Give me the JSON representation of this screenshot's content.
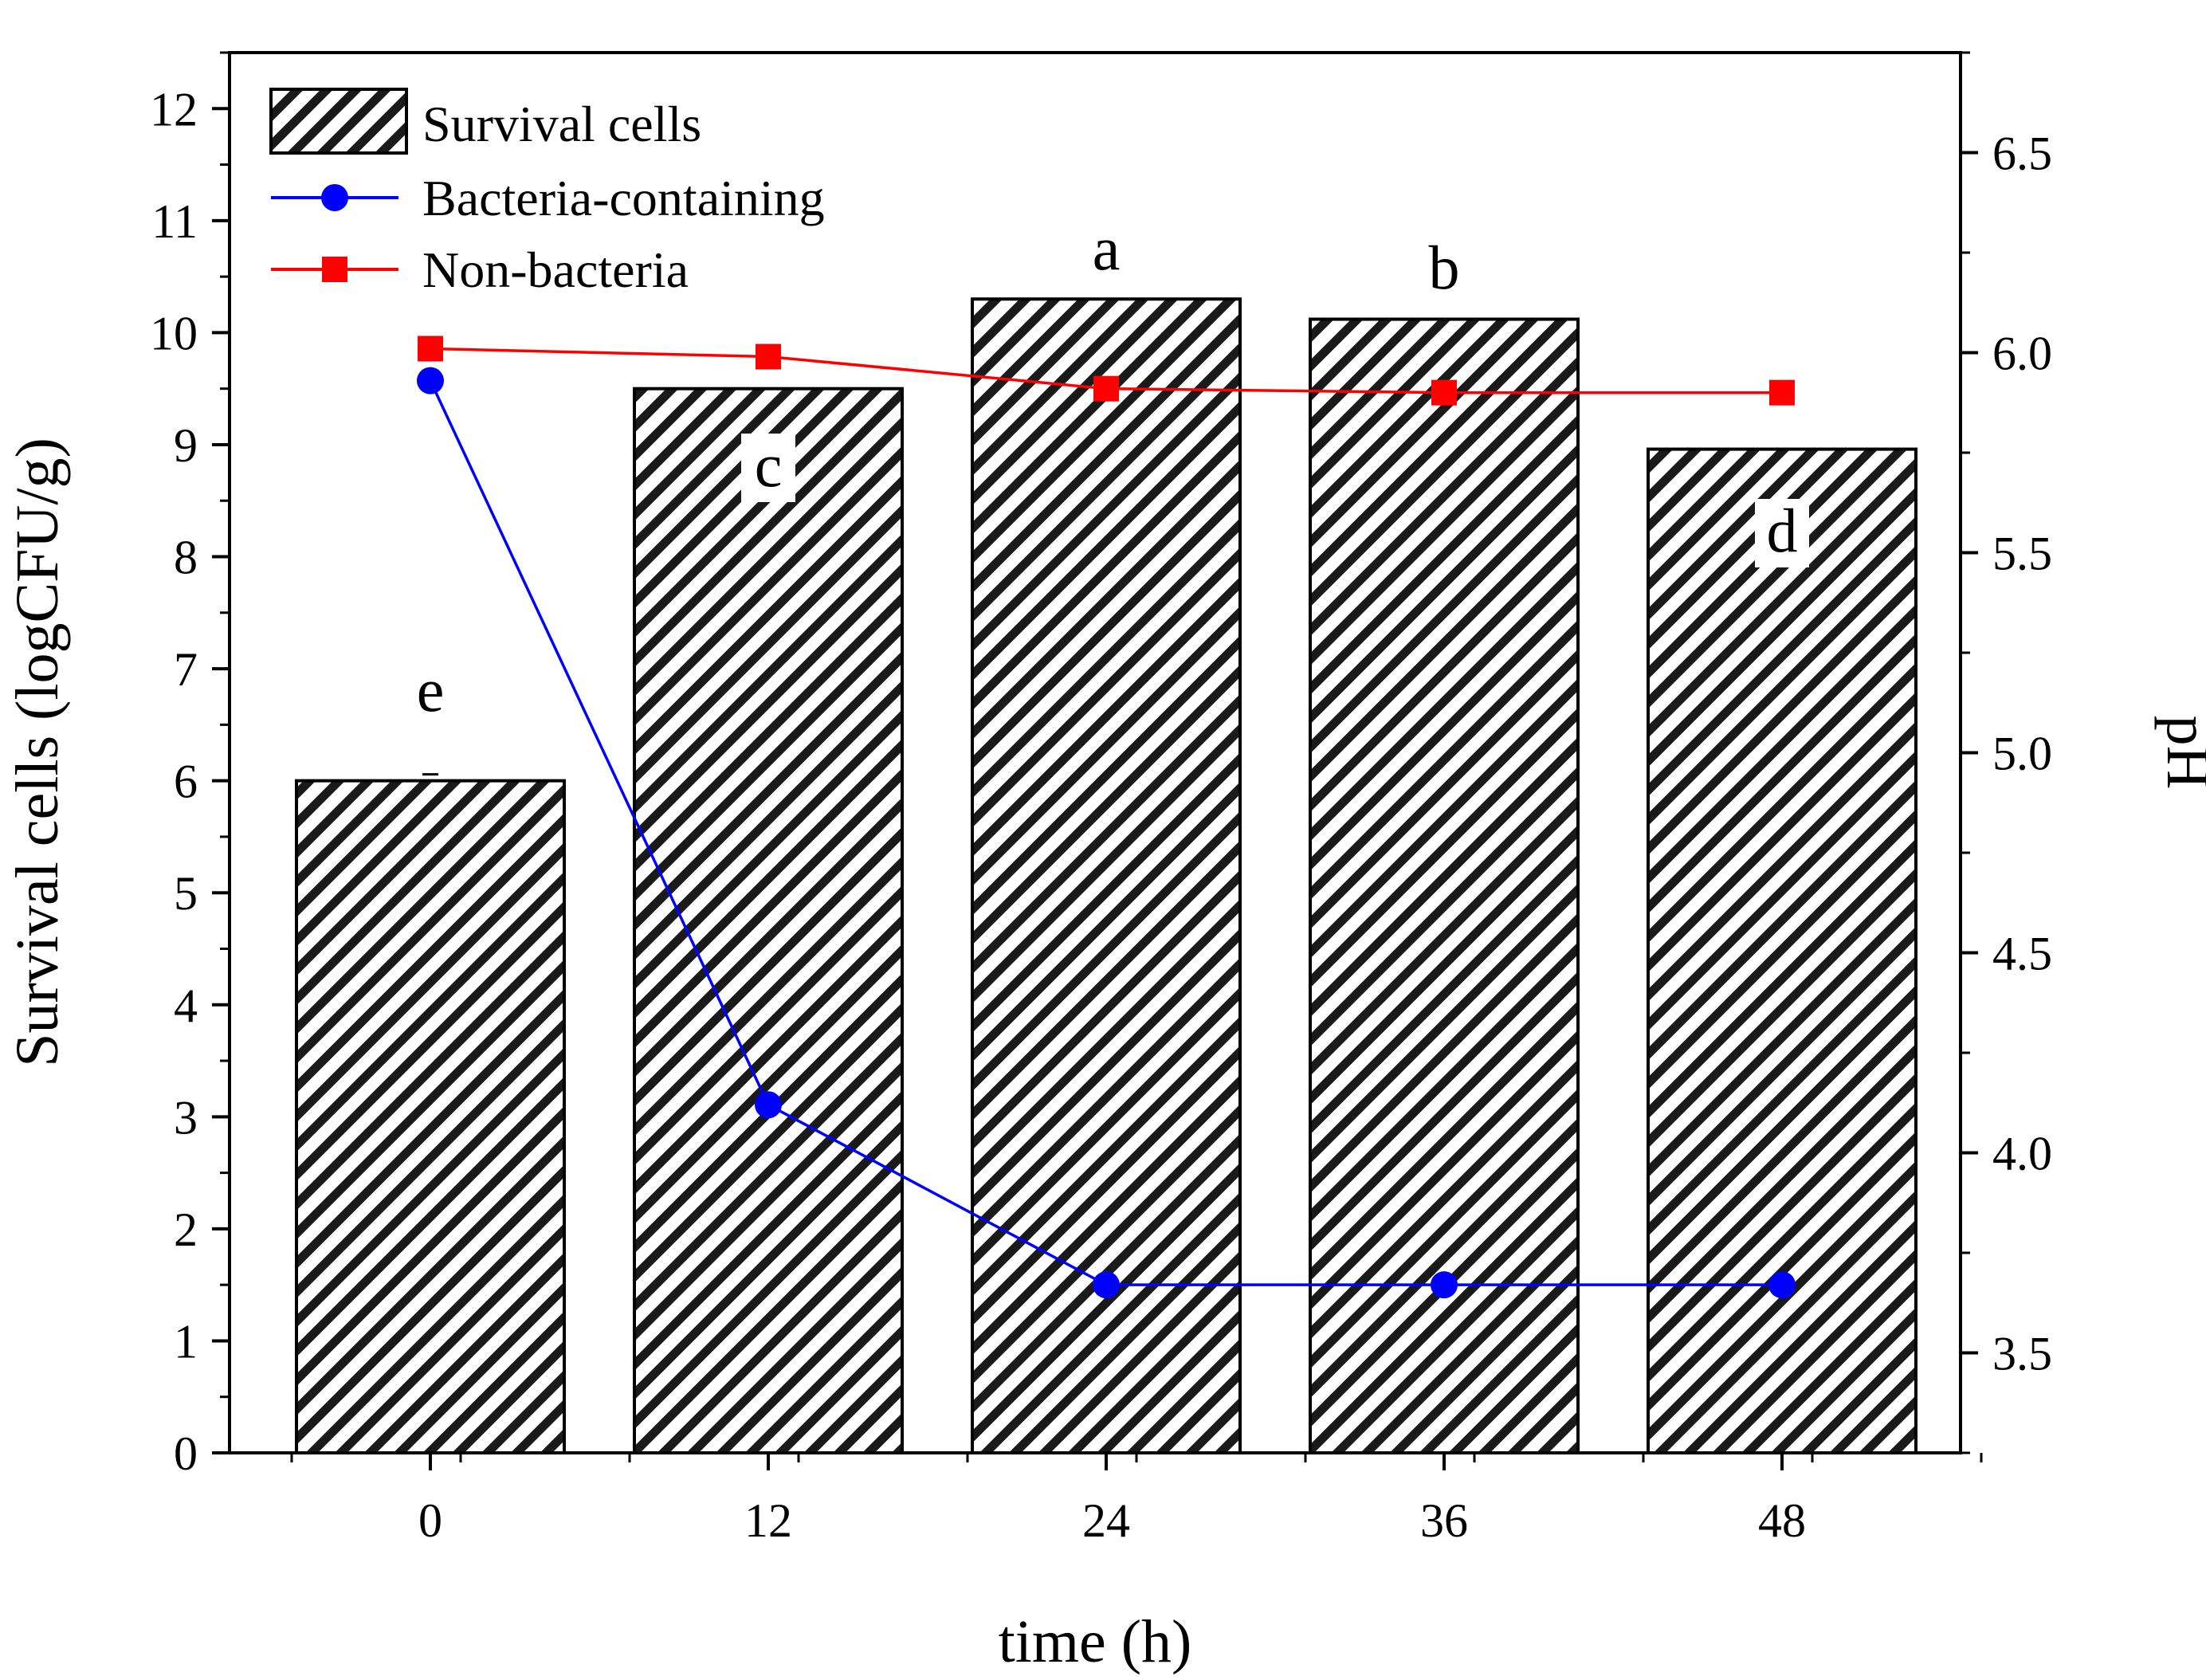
{
  "chart_data": {
    "type": "bar",
    "xlabel": "time (h)",
    "ylabel": "Survival cells (logCFU/g)",
    "y2label": "pH",
    "categories": [
      "0",
      "12",
      "24",
      "36",
      "48"
    ],
    "ylim": [
      0,
      12.5
    ],
    "y2lim": [
      3.25,
      6.75
    ],
    "yticks": [
      "0",
      "1",
      "2",
      "3",
      "4",
      "5",
      "6",
      "7",
      "8",
      "9",
      "10",
      "11",
      "12"
    ],
    "y2ticks": [
      "3.5",
      "4.0",
      "4.5",
      "5.0",
      "5.5",
      "6.0",
      "6.5"
    ],
    "bars": {
      "name": "Survival cells",
      "values": [
        6.0,
        9.5,
        10.3,
        10.12,
        8.96
      ],
      "labels": [
        "e",
        "c",
        "a",
        "b",
        "d"
      ],
      "pattern": "diagonal-hatch"
    },
    "series": [
      {
        "name": "Bacteria-containing",
        "axis": "right",
        "color": "#0000ff",
        "marker": "circle",
        "values": [
          5.93,
          4.12,
          3.67,
          3.67,
          3.67
        ]
      },
      {
        "name": "Non-bacteria",
        "axis": "right",
        "color": "#ff0000",
        "marker": "square",
        "values": [
          6.01,
          5.99,
          5.91,
          5.9,
          5.9
        ]
      }
    ],
    "legend": "top-left"
  }
}
